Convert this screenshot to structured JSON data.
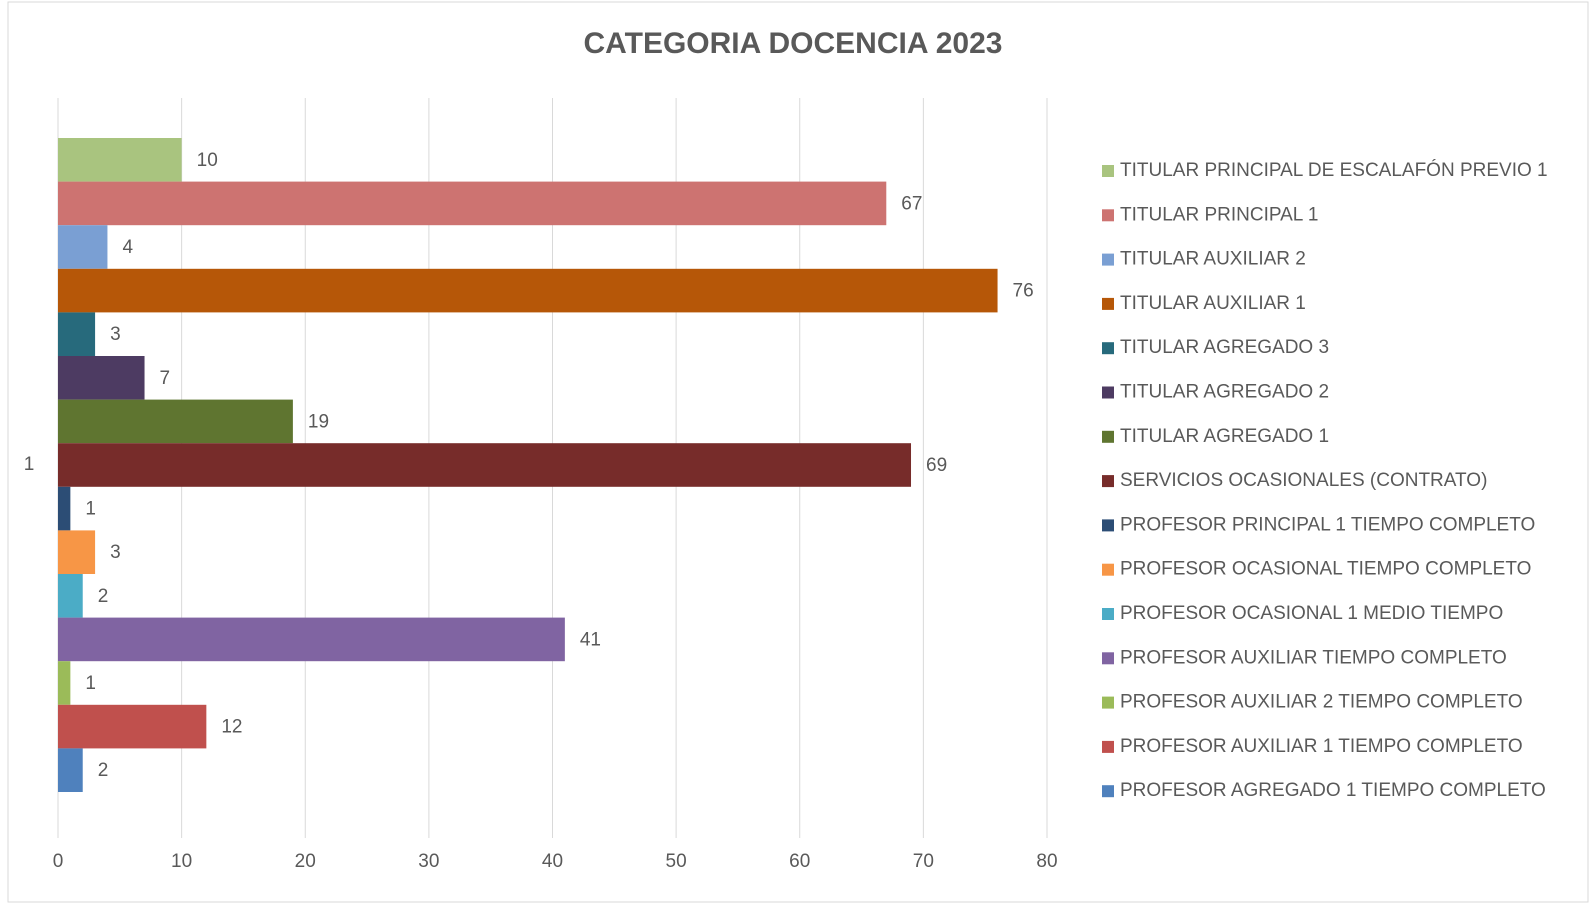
{
  "chart_data": {
    "type": "bar",
    "orientation": "horizontal",
    "title": "CATEGORIA DOCENCIA 2023",
    "categories": [
      "1"
    ],
    "xlim": [
      0,
      80
    ],
    "xticks": [
      0,
      10,
      20,
      30,
      40,
      50,
      60,
      70,
      80
    ],
    "grid": true,
    "legend": "right",
    "series": [
      {
        "name": "TITULAR PRINCIPAL DE ESCALAFÓN PREVIO 1",
        "color": "#a9c47f",
        "values": [
          10
        ]
      },
      {
        "name": "TITULAR PRINCIPAL 1",
        "color": "#cd7371",
        "values": [
          67
        ]
      },
      {
        "name": "TITULAR AUXILIAR 2",
        "color": "#7a9fd3",
        "values": [
          4
        ]
      },
      {
        "name": "TITULAR AUXILIAR 1",
        "color": "#b65708",
        "values": [
          76
        ]
      },
      {
        "name": "TITULAR AGREGADO 3",
        "color": "#276a7c",
        "values": [
          3
        ]
      },
      {
        "name": "TITULAR AGREGADO 2",
        "color": "#4d3b62",
        "values": [
          7
        ]
      },
      {
        "name": "TITULAR AGREGADO 1",
        "color": "#5f7530",
        "values": [
          19
        ]
      },
      {
        "name": "SERVICIOS OCASIONALES (CONTRATO)",
        "color": "#772c2a",
        "values": [
          69
        ]
      },
      {
        "name": "PROFESOR PRINCIPAL 1 TIEMPO COMPLETO",
        "color": "#2c4d75",
        "values": [
          1
        ]
      },
      {
        "name": "PROFESOR OCASIONAL TIEMPO COMPLETO",
        "color": "#f79646",
        "values": [
          3
        ]
      },
      {
        "name": "PROFESOR OCASIONAL 1 MEDIO TIEMPO",
        "color": "#4bacc6",
        "values": [
          2
        ]
      },
      {
        "name": "PROFESOR AUXILIAR TIEMPO COMPLETO",
        "color": "#8064a2",
        "values": [
          41
        ]
      },
      {
        "name": "PROFESOR AUXILIAR 2 TIEMPO COMPLETO",
        "color": "#9bbb59",
        "values": [
          1
        ]
      },
      {
        "name": "PROFESOR AUXILIAR 1 TIEMPO COMPLETO",
        "color": "#c0504d",
        "values": [
          12
        ]
      },
      {
        "name": "PROFESOR AGREGADO 1 TIEMPO COMPLETO",
        "color": "#4f81bd",
        "values": [
          2
        ]
      }
    ]
  }
}
